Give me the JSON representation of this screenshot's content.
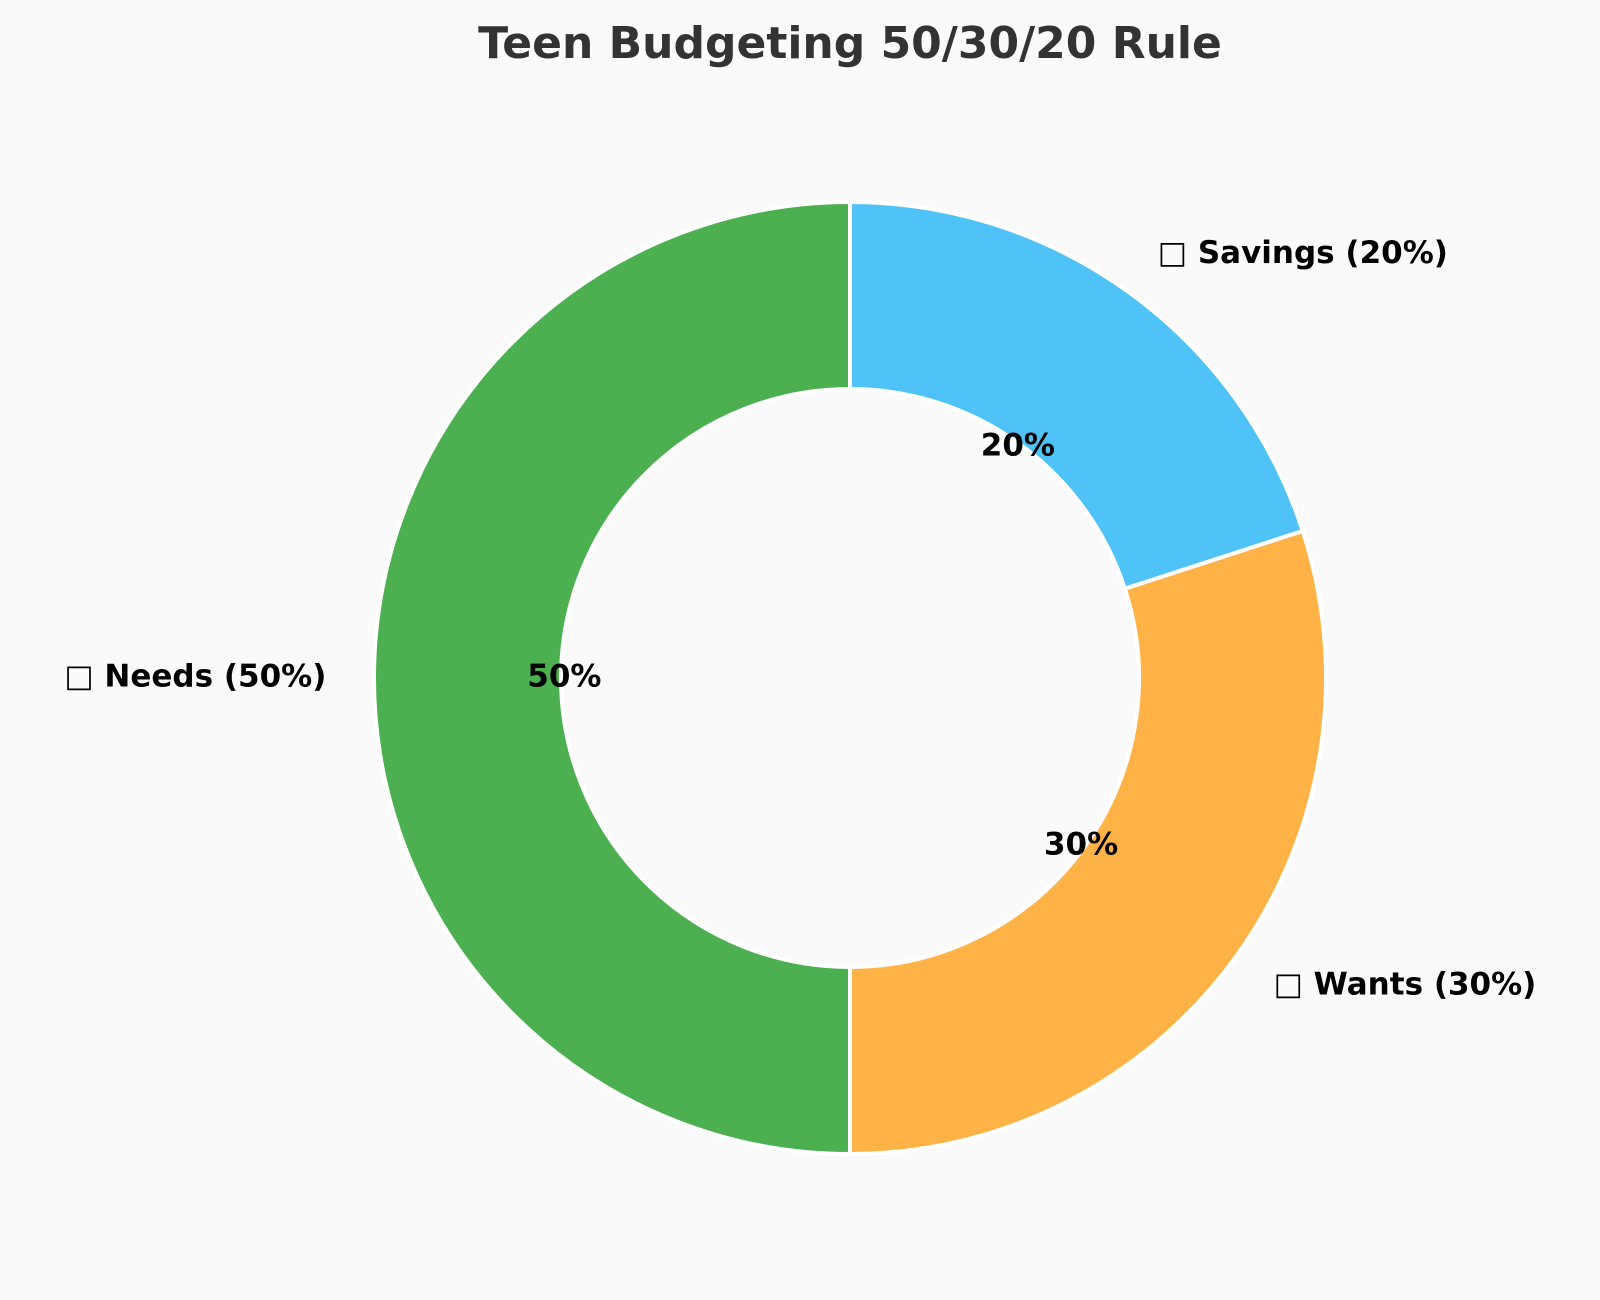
{
  "chart_data": {
    "type": "donut",
    "title": "Teen Budgeting 50/30/20 Rule",
    "categories": [
      "□ Needs (50%)",
      "□ Wants (30%)",
      "□ Savings (20%)"
    ],
    "values": [
      50,
      30,
      20
    ],
    "value_labels": [
      "50%",
      "30%",
      "20%"
    ],
    "colors": [
      "#4caf50",
      "#ffb347",
      "#4fc3f7"
    ]
  }
}
